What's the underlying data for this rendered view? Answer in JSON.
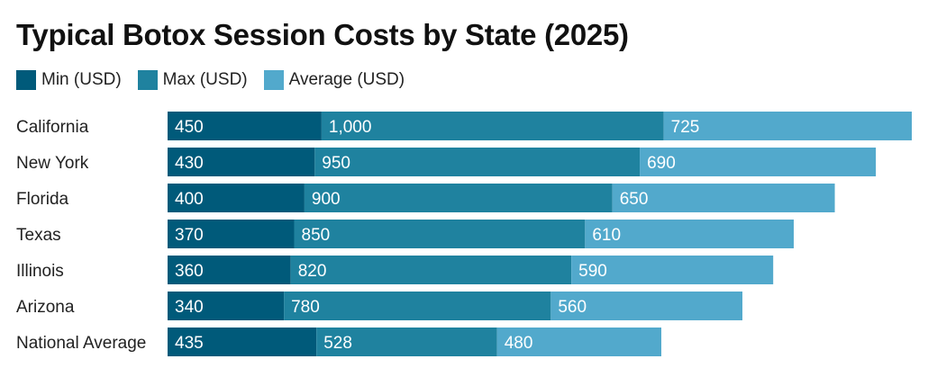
{
  "chart_data": {
    "type": "bar",
    "orientation": "horizontal",
    "stacked": true,
    "title": "Typical Botox Session Costs by State (2025)",
    "categories": [
      "California",
      "New York",
      "Florida",
      "Texas",
      "Illinois",
      "Arizona",
      "National Average"
    ],
    "series": [
      {
        "name": "Min (USD)",
        "color": "#005a7a",
        "values": [
          450,
          430,
          400,
          370,
          360,
          340,
          435
        ]
      },
      {
        "name": "Max (USD)",
        "color": "#1f829f",
        "values": [
          1000,
          950,
          900,
          850,
          820,
          780,
          528
        ]
      },
      {
        "name": "Average (USD)",
        "color": "#52a9cc",
        "values": [
          725,
          690,
          650,
          610,
          590,
          560,
          480
        ]
      }
    ],
    "value_labels": [
      [
        "450",
        "1,000",
        "725"
      ],
      [
        "430",
        "950",
        "690"
      ],
      [
        "400",
        "900",
        "650"
      ],
      [
        "370",
        "850",
        "610"
      ],
      [
        "360",
        "820",
        "590"
      ],
      [
        "340",
        "780",
        "560"
      ],
      [
        "435",
        "528",
        "480"
      ]
    ],
    "legend_position": "top-left",
    "grid": false,
    "x_axis_visible": false
  }
}
